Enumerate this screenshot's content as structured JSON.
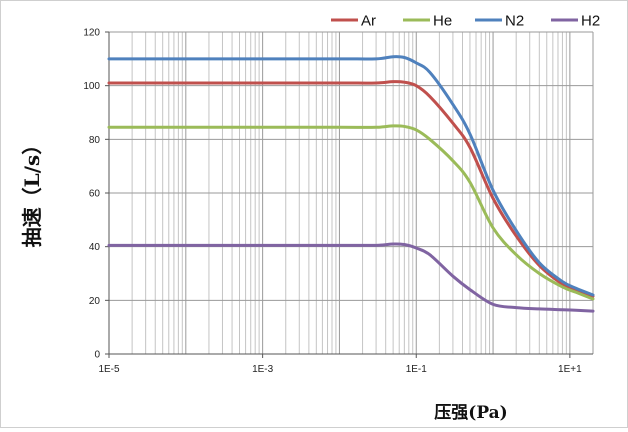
{
  "chart_data": {
    "type": "line",
    "xlabel": "压强(Pa)",
    "ylabel": "抽速（L/s）",
    "xscale": "log",
    "xlim": [
      1e-05,
      20
    ],
    "ylim": [
      0,
      120
    ],
    "grid": true,
    "legend_position": "top-right",
    "x_tick_labels": [
      "1E-5",
      "1E-3",
      "1E-1",
      "1E+1"
    ],
    "y_tick_labels": [
      "0",
      "20",
      "40",
      "60",
      "80",
      "100",
      "120"
    ],
    "y_ticks": [
      0,
      20,
      40,
      60,
      80,
      100,
      120
    ],
    "x": [
      1e-05,
      0.0001,
      0.001,
      0.01,
      0.03,
      0.05,
      0.07,
      0.1,
      0.15,
      0.3,
      0.5,
      1,
      2,
      4,
      8,
      12,
      20
    ],
    "series": [
      {
        "name": "Ar",
        "color": "#c0504d",
        "values": [
          101,
          101,
          101,
          101,
          101,
          101.5,
          101.3,
          100,
          96,
          86,
          77,
          58,
          44,
          33,
          26,
          23.5,
          21.5
        ]
      },
      {
        "name": "He",
        "color": "#9bbb59",
        "values": [
          84.5,
          84.5,
          84.5,
          84.5,
          84.5,
          85,
          84.8,
          83.5,
          80,
          72,
          64,
          47,
          37,
          30,
          25,
          23,
          20.5
        ]
      },
      {
        "name": "N2",
        "color": "#4f81bd",
        "values": [
          110,
          110,
          110,
          110,
          110,
          110.8,
          110.5,
          108.5,
          105,
          93,
          82,
          61,
          46,
          34,
          27,
          24.5,
          22
        ]
      },
      {
        "name": "H2",
        "color": "#8064a2",
        "values": [
          40.5,
          40.5,
          40.5,
          40.5,
          40.5,
          41,
          40.8,
          39.5,
          37,
          29,
          24,
          18.5,
          17.3,
          16.8,
          16.5,
          16.3,
          16
        ]
      }
    ]
  }
}
